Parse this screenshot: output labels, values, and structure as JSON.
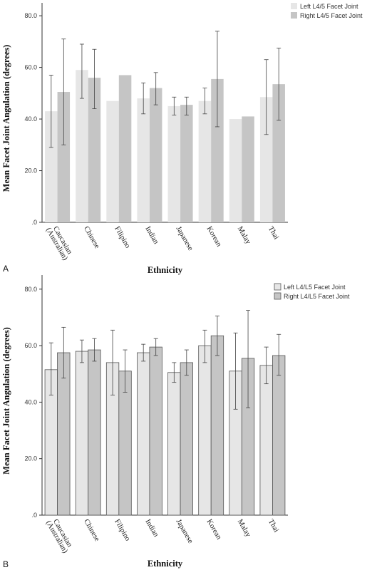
{
  "chart_data": [
    {
      "type": "bar",
      "panel_label": "A",
      "xlabel": "Ethnicity",
      "ylabel": "Mean Facet Joint Angulation (degrees)",
      "ylim": [
        0,
        85
      ],
      "yticks": [
        0,
        20,
        40,
        60,
        80
      ],
      "ytick_labels": [
        ".0",
        "20.0",
        "40.0",
        "60.0",
        "80.0"
      ],
      "categories": [
        [
          "Caucasian",
          "(Australian)"
        ],
        [
          "Chinese"
        ],
        [
          "Filipino"
        ],
        [
          "Indian"
        ],
        [
          "Japanese"
        ],
        [
          "Korean"
        ],
        [
          "Malay"
        ],
        [
          "Thai"
        ]
      ],
      "legend_position": "top-right",
      "grid": false,
      "series": [
        {
          "name": "Left L4/5 Facet Joint",
          "color": "#e6e6e6",
          "values": [
            43,
            59,
            47,
            48,
            45,
            47,
            40,
            48.5
          ],
          "error_low": [
            29,
            48,
            null,
            42,
            41.5,
            42,
            null,
            34
          ],
          "error_high": [
            57,
            69,
            null,
            54,
            48.5,
            52,
            null,
            63
          ]
        },
        {
          "name": "Right L4/5 Facet Joint",
          "color": "#c5c5c5",
          "values": [
            50.5,
            56,
            57,
            52,
            45.5,
            55.5,
            41,
            53.5
          ],
          "error_low": [
            30,
            44,
            null,
            45.5,
            41.5,
            37,
            null,
            39.5
          ],
          "error_high": [
            71,
            67,
            null,
            58,
            48.5,
            74,
            null,
            67.5
          ]
        }
      ]
    },
    {
      "type": "bar",
      "panel_label": "B",
      "xlabel": "Ethnicity",
      "ylabel": "Mean Facet Joint Angulation (degrees)",
      "ylim": [
        0,
        85
      ],
      "yticks": [
        0,
        20,
        40,
        60,
        80
      ],
      "ytick_labels": [
        ".0",
        "20.0",
        "40.0",
        "60.0",
        "80.0"
      ],
      "categories": [
        [
          "Caucasian",
          "(Australian)"
        ],
        [
          "Chinese"
        ],
        [
          "Filipino"
        ],
        [
          "Indian"
        ],
        [
          "Japanese"
        ],
        [
          "Korean"
        ],
        [
          "Malay"
        ],
        [
          "Thai"
        ]
      ],
      "legend_position": "top-right",
      "grid": false,
      "series": [
        {
          "name": "Left L4/L5 Facet Joint",
          "color": "#e6e6e6",
          "values": [
            51.5,
            58,
            54,
            57.5,
            50.5,
            60,
            51,
            53
          ],
          "error_low": [
            42.5,
            54,
            42.5,
            54.5,
            47,
            54,
            37.5,
            46.5
          ],
          "error_high": [
            61,
            62,
            65.5,
            60.5,
            54,
            65.5,
            64.5,
            59.5
          ]
        },
        {
          "name": "Right L4/L5 Facet Joint",
          "color": "#c5c5c5",
          "values": [
            57.5,
            58.5,
            51,
            59.5,
            54,
            63.5,
            55.5,
            56.5
          ],
          "error_low": [
            48.5,
            54.5,
            43.5,
            56.5,
            49.5,
            56.5,
            38,
            49.5
          ],
          "error_high": [
            66.5,
            62.5,
            58.5,
            62.5,
            58.5,
            70.5,
            72.5,
            64
          ]
        }
      ]
    }
  ]
}
